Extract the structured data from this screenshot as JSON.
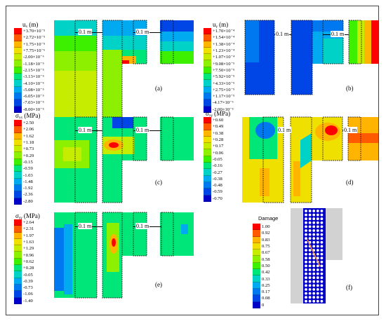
{
  "panels": {
    "a": {
      "label": "(a)",
      "title": "uₓ (m)",
      "legend": [
        "+3.70×10⁻⁵",
        "+2.72×10⁻⁵",
        "+1.75×10⁻⁵",
        "+7.75×10⁻⁶",
        "-2.00×10⁻⁶",
        "-1.18×10⁻⁵",
        "-2.15×10⁻⁵",
        "-3.13×10⁻⁵",
        "-4.10×10⁻⁵",
        "-5.08×10⁻⁵",
        "-6.05×10⁻⁵",
        "-7.03×10⁻⁵",
        "-8.00×10⁻⁵"
      ],
      "dims": [
        "0.1 m",
        "0.1 m"
      ]
    },
    "b": {
      "label": "(b)",
      "title": "uᵧ (m)",
      "legend": [
        "+1.70×10⁻⁴",
        "+1.54×10⁻⁴",
        "+1.38×10⁻⁴",
        "+1.23×10⁻⁴",
        "+1.07×10⁻⁴",
        "+9.08×10⁻⁵",
        "+7.50×10⁻⁵",
        "+5.92×10⁻⁵",
        "+4.33×10⁻⁵",
        "+2.75×10⁻⁵",
        "+1.17×10⁻⁵",
        "-4.17×10⁻⁶",
        "-2.00×10⁻⁵"
      ],
      "dims": [
        "0.1 m",
        "0.1 m"
      ]
    },
    "c": {
      "label": "(c)",
      "title": "σₓₓ (MPa)",
      "legend": [
        "+2.50",
        "+2.06",
        "+1.62",
        "+1.18",
        "+0.73",
        "+0.29",
        "-0.15",
        "-0.59",
        "-1.03",
        "-1.48",
        "-1.92",
        "-2.36",
        "-2.80"
      ],
      "dims": [
        "0.1 m",
        "0.1 m"
      ]
    },
    "d": {
      "label": "(d)",
      "title": "σₓᵧ (MPa)",
      "legend": [
        "+0.60",
        "+0.49",
        "+0.38",
        "+0.28",
        "+0.17",
        "+0.06",
        "-0.05",
        "-0.16",
        "-0.27",
        "-0.38",
        "-0.48",
        "-0.59",
        "-0.70"
      ],
      "dims": [
        "0.1 m",
        "0.1 m"
      ]
    },
    "e": {
      "label": "(e)",
      "title": "σᵧᵧ (MPa)",
      "legend": [
        "+2.64",
        "+2.31",
        "+1.97",
        "+1.63",
        "+1.29",
        "+0.96",
        "+0.62",
        "+0.28",
        "-0.05",
        "-0.39",
        "-0.73",
        "-1.06",
        "-1.40"
      ],
      "dims": [
        "0.1 m",
        "0.1 m"
      ]
    },
    "f": {
      "label": "(f)",
      "title": "Damage",
      "legend": [
        "1.00",
        "0.92",
        "0.83",
        "0.75",
        "0.67",
        "0.58",
        "0.50",
        "0.42",
        "0.33",
        "0.25",
        "0.17",
        "0.08",
        "0"
      ]
    }
  },
  "colors": {
    "scale13": [
      "#ff0000",
      "#ff5a00",
      "#ffb400",
      "#f0e000",
      "#c6ec00",
      "#8cf000",
      "#3cf000",
      "#00e678",
      "#00d2c8",
      "#00aaf0",
      "#0078f0",
      "#0046e6",
      "#0000c8"
    ],
    "grey": "#d2d2d2",
    "dark_blue": "#0000c8"
  }
}
